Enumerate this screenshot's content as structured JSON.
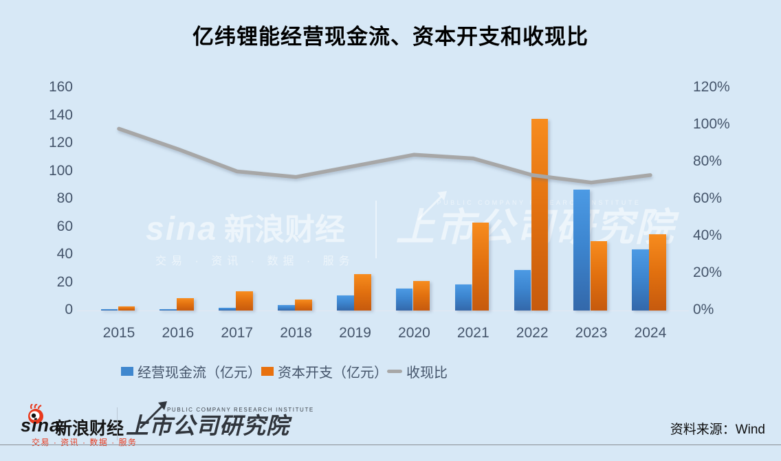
{
  "title": "亿纬锂能经营现金流、资本开支和收现比",
  "chart_data": {
    "type": "bar",
    "title": "亿纬锂能经营现金流、资本开支和收现比",
    "categories": [
      "2015",
      "2016",
      "2017",
      "2018",
      "2019",
      "2020",
      "2021",
      "2022",
      "2023",
      "2024"
    ],
    "series": [
      {
        "name": "经营现金流（亿元）",
        "type": "bar",
        "axis": "left",
        "values": [
          1,
          1,
          2,
          4,
          11,
          16,
          19,
          29,
          87,
          44
        ]
      },
      {
        "name": "资本开支（亿元）",
        "type": "bar",
        "axis": "left",
        "values": [
          3,
          9,
          14,
          8,
          26,
          21,
          63,
          138,
          50,
          55
        ]
      },
      {
        "name": "收现比",
        "type": "line",
        "axis": "right",
        "unit": "%",
        "values": [
          98,
          87,
          75,
          72,
          78,
          84,
          82,
          73,
          69,
          73
        ]
      }
    ],
    "left_axis": {
      "min": 0,
      "max": 160,
      "step": 20,
      "tick_labels": [
        "160",
        "140",
        "120",
        "100",
        "80",
        "60",
        "40",
        "20",
        "0"
      ]
    },
    "right_axis": {
      "min": 0,
      "max": 120,
      "step": 20,
      "tick_labels": [
        "120%",
        "100%",
        "80%",
        "60%",
        "40%",
        "20%",
        "0%"
      ]
    },
    "legend_position": "bottom",
    "grid": false
  },
  "colors": {
    "background": "#d7e8f6",
    "bar_blue_top": "#4c9ae4",
    "bar_blue_bottom": "#3368aa",
    "bar_orange_top": "#f78c1e",
    "bar_orange_bottom": "#c65a0e",
    "line_gray": "#a7a7a7",
    "axis_text": "#44546a",
    "sina_red": "#e8391d"
  },
  "watermark": {
    "sina_word": "sina",
    "brand": "新浪财经",
    "tagline": "交易 · 资讯 · 数据 · 服务",
    "institute_en": "PUBLIC COMPANY RESEARCH INSTITUTE",
    "institute_cn": "上市公司研究院"
  },
  "footer": {
    "sina_word": "sina",
    "sina_brand": "新浪财经",
    "sina_tagline": "交易 · 资讯 · 数据 · 服务",
    "institute_en": "PUBLIC COMPANY RESEARCH INSTITUTE",
    "institute_cn": "上市公司研究院",
    "source": "资料来源：Wind"
  }
}
